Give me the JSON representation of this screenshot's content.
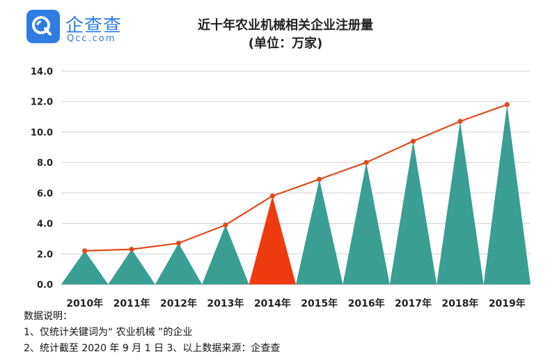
{
  "logo": {
    "name": "企查查",
    "domain": "Qcc.com"
  },
  "title": "近十年农业机械相关企业注册量",
  "subtitle": "(单位：万家)",
  "colors": {
    "peak": "#3a9e93",
    "highlight": "#ee3a0f",
    "line": "#e14a1c",
    "brand": "#2f7de1"
  },
  "chart_data": {
    "type": "bar",
    "bar_shape": "triangle",
    "categories": [
      "2010年",
      "2011年",
      "2012年",
      "2013年",
      "2014年",
      "2015年",
      "2016年",
      "2017年",
      "2018年",
      "2019年"
    ],
    "values": [
      2.2,
      2.3,
      2.7,
      3.9,
      5.8,
      6.9,
      8.0,
      9.4,
      10.7,
      11.8
    ],
    "highlight_category": "2014年",
    "overlay": "line",
    "ylim": [
      0,
      14
    ],
    "yticks": [
      "0.0",
      "2.0",
      "4.0",
      "6.0",
      "8.0",
      "10.0",
      "12.0",
      "14.0"
    ],
    "grid": true
  },
  "notes": {
    "heading": "数据说明：",
    "line1": "1、仅统计关键词为“ 农业机械 ”的企业",
    "line2": "2、统计截至 2020 年 9 月 1 日   3、以上数据来源：企查查"
  }
}
